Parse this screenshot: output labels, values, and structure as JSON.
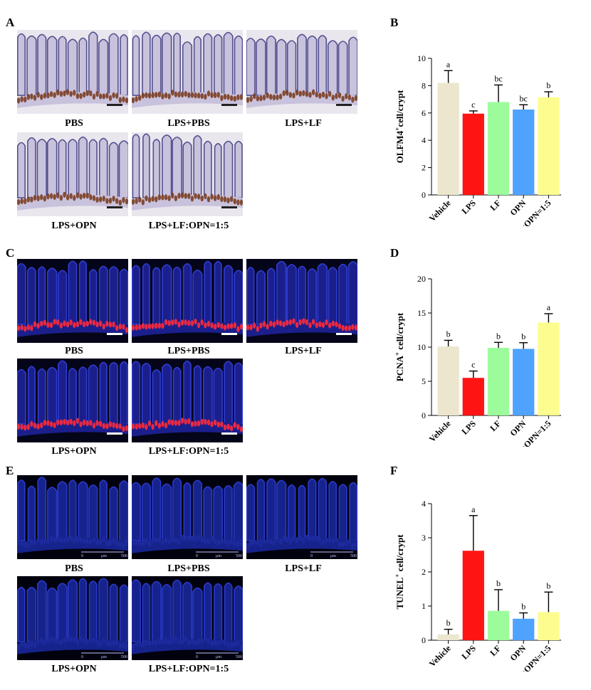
{
  "panel_labels": [
    "A",
    "B",
    "C",
    "D",
    "E",
    "F"
  ],
  "row_a": {
    "captions": [
      "PBS",
      "LPS+PBS",
      "LPS+LF",
      "LPS+OPN",
      "LPS+LF:OPN=1:5"
    ],
    "stain": "ihc",
    "colors": {
      "bg": "#e9e6ee",
      "tissue": "#c9c2dc",
      "nuclei": "#53508f",
      "crypt": "#7b3e22"
    }
  },
  "row_c": {
    "captions": [
      "PBS",
      "LPS+PBS",
      "LPS+LF",
      "LPS+OPN",
      "LPS+LF:OPN=1:5"
    ],
    "stain": "if-pcna",
    "colors": {
      "bg": "#05051a",
      "tissue": "#1b1f8c",
      "nuclei": "#2f3dd0",
      "crypt": "#ff2a3a"
    }
  },
  "row_e": {
    "captions": [
      "PBS",
      "LPS+PBS",
      "LPS+LF",
      "LPS+OPN",
      "LPS+LF:OPN=1:5"
    ],
    "stain": "if-tunel",
    "scalebar_text": [
      "0",
      "μm",
      "500"
    ],
    "colors": {
      "bg": "#02020e",
      "tissue": "#16238c",
      "nuclei": "#2a39c8",
      "crypt": "#1d2b9e"
    }
  },
  "chart_data": [
    {
      "panel": "B",
      "type": "bar",
      "categories": [
        "Vehicle",
        "LPS",
        "LF",
        "OPN",
        "LF:OPN=1:5"
      ],
      "values": [
        8.2,
        5.95,
        6.8,
        6.25,
        7.15
      ],
      "errors": [
        0.9,
        0.2,
        1.25,
        0.35,
        0.4
      ],
      "letters": [
        "a",
        "c",
        "bc",
        "bc",
        "b"
      ],
      "ylabel_main": "OLFM4",
      "ylabel_sup": "+",
      "ylabel_rest": "cell/crypt",
      "ylim": [
        0,
        10
      ],
      "yticks": [
        0,
        2,
        4,
        6,
        8,
        10
      ],
      "colors": [
        "#ebe6cd",
        "#ff1414",
        "#9cfc9c",
        "#4fa3ff",
        "#fdfd8f"
      ]
    },
    {
      "panel": "D",
      "type": "bar",
      "categories": [
        "Vehicle",
        "LPS",
        "LF",
        "OPN",
        "LF:OPN=1:5"
      ],
      "values": [
        10.1,
        5.5,
        9.9,
        9.75,
        13.6
      ],
      "errors": [
        0.9,
        1.0,
        0.8,
        0.9,
        1.3
      ],
      "letters": [
        "b",
        "c",
        "b",
        "b",
        "a"
      ],
      "ylabel_main": "PCNA",
      "ylabel_sup": "+",
      "ylabel_rest": " cell/crypt",
      "ylim": [
        0,
        20
      ],
      "yticks": [
        0,
        5,
        10,
        15,
        20
      ],
      "colors": [
        "#ebe6cd",
        "#ff1414",
        "#9cfc9c",
        "#4fa3ff",
        "#fdfd8f"
      ]
    },
    {
      "panel": "F",
      "type": "bar",
      "categories": [
        "Vehicle",
        "LPS",
        "LF",
        "OPN",
        "LF:OPN=1:5"
      ],
      "values": [
        0.17,
        2.62,
        0.86,
        0.63,
        0.82
      ],
      "errors": [
        0.15,
        1.03,
        0.62,
        0.17,
        0.59
      ],
      "letters": [
        "b",
        "a",
        "b",
        "b",
        "b"
      ],
      "ylabel_main": "TUNEL",
      "ylabel_sup": "+",
      "ylabel_rest": " cell/crypt",
      "ylim": [
        0,
        4
      ],
      "yticks": [
        0,
        1,
        2,
        3,
        4
      ],
      "colors": [
        "#ebe6cd",
        "#ff1414",
        "#9cfc9c",
        "#4fa3ff",
        "#fdfd8f"
      ]
    }
  ]
}
